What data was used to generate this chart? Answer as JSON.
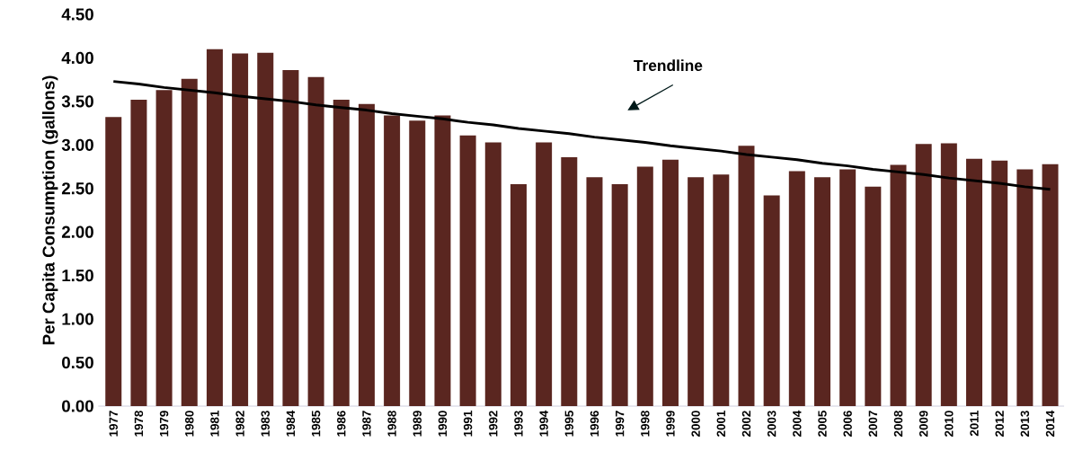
{
  "chart_data": {
    "type": "bar",
    "ylabel": "Per Capita Consumption (gallons)",
    "categories": [
      "1977",
      "1978",
      "1979",
      "1980",
      "1981",
      "1982",
      "1983",
      "1984",
      "1985",
      "1986",
      "1987",
      "1988",
      "1989",
      "1990",
      "1991",
      "1992",
      "1993",
      "1994",
      "1995",
      "1996",
      "1997",
      "1998",
      "1999",
      "2000",
      "2001",
      "2002",
      "2003",
      "2004",
      "2005",
      "2006",
      "2007",
      "2008",
      "2009",
      "2010",
      "2011",
      "2012",
      "2013",
      "2014"
    ],
    "series": [
      {
        "color": "#5a2620",
        "values": [
          3.32,
          3.52,
          3.63,
          3.76,
          4.1,
          4.05,
          4.06,
          3.86,
          3.78,
          3.52,
          3.47,
          3.34,
          3.28,
          3.34,
          3.11,
          3.03,
          2.55,
          3.03,
          2.86,
          2.63,
          2.55,
          2.75,
          2.83,
          2.63,
          2.66,
          2.99,
          2.42,
          2.7,
          2.63,
          2.72,
          2.52,
          2.77,
          3.01,
          3.02,
          2.84,
          2.82,
          2.72,
          2.78
        ]
      },
      {
        "type": "line",
        "color": "#000000",
        "values": [
          3.73,
          3.7,
          3.66,
          3.63,
          3.6,
          3.56,
          3.53,
          3.5,
          3.46,
          3.43,
          3.4,
          3.36,
          3.33,
          3.3,
          3.26,
          3.23,
          3.19,
          3.16,
          3.13,
          3.09,
          3.06,
          3.03,
          2.99,
          2.96,
          2.93,
          2.89,
          2.86,
          2.83,
          2.79,
          2.76,
          2.72,
          2.69,
          2.66,
          2.62,
          2.59,
          2.56,
          2.52,
          2.49
        ]
      }
    ],
    "annotations": [
      "Trendline"
    ],
    "ylim": [
      0,
      4.5
    ],
    "yticks": [
      {
        "value": 0,
        "label": "0.00"
      },
      {
        "value": 0.5,
        "label": "0.50"
      },
      {
        "value": 1,
        "label": "1.00"
      },
      {
        "value": 1.5,
        "label": "1.50"
      },
      {
        "value": 2,
        "label": "2.00"
      },
      {
        "value": 2.5,
        "label": "2.50"
      },
      {
        "value": 3,
        "label": "3.00"
      },
      {
        "value": 3.5,
        "label": "3.50"
      },
      {
        "value": 4,
        "label": "4.00"
      },
      {
        "value": 4.5,
        "label": "4.50"
      }
    ],
    "grid": false
  }
}
